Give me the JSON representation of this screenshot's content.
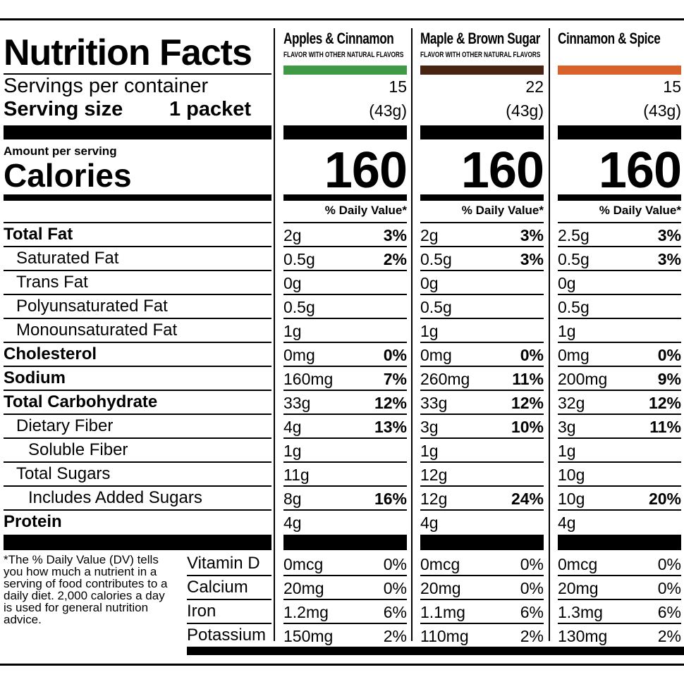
{
  "title": "Nutrition Facts",
  "servings_label": "Servings per container",
  "serving_size_label": "Serving size",
  "serving_size_value": "1 packet",
  "amount_per_serving": "Amount per serving",
  "calories_label": "Calories",
  "dv_header": "% Daily Value*",
  "products": [
    {
      "name": "Apples & Cinnamon",
      "subtitle": "FLAVOR WITH OTHER NATURAL FLAVORS",
      "color": "#3f9a45",
      "servings": "15",
      "weight": "(43g)",
      "calories": "160",
      "nutrients": [
        {
          "amount": "2g",
          "dv": "3%"
        },
        {
          "amount": "0.5g",
          "dv": "2%"
        },
        {
          "amount": "0g",
          "dv": ""
        },
        {
          "amount": "0.5g",
          "dv": ""
        },
        {
          "amount": "1g",
          "dv": ""
        },
        {
          "amount": "0mg",
          "dv": "0%"
        },
        {
          "amount": "160mg",
          "dv": "7%"
        },
        {
          "amount": "33g",
          "dv": "12%"
        },
        {
          "amount": "4g",
          "dv": "13%"
        },
        {
          "amount": "1g",
          "dv": ""
        },
        {
          "amount": "11g",
          "dv": ""
        },
        {
          "amount": "8g",
          "dv": "16%"
        },
        {
          "amount": "4g",
          "dv": ""
        }
      ],
      "minerals": [
        {
          "amount": "0mcg",
          "dv": "0%"
        },
        {
          "amount": "20mg",
          "dv": "0%"
        },
        {
          "amount": "1.2mg",
          "dv": "6%"
        },
        {
          "amount": "150mg",
          "dv": "2%"
        }
      ]
    },
    {
      "name": "Maple & Brown Sugar",
      "subtitle": "FLAVOR WITH OTHER NATURAL FLAVORS",
      "color": "#4a2413",
      "servings": "22",
      "weight": "(43g)",
      "calories": "160",
      "nutrients": [
        {
          "amount": "2g",
          "dv": "3%"
        },
        {
          "amount": "0.5g",
          "dv": "3%"
        },
        {
          "amount": "0g",
          "dv": ""
        },
        {
          "amount": "0.5g",
          "dv": ""
        },
        {
          "amount": "1g",
          "dv": ""
        },
        {
          "amount": "0mg",
          "dv": "0%"
        },
        {
          "amount": "260mg",
          "dv": "11%"
        },
        {
          "amount": "33g",
          "dv": "12%"
        },
        {
          "amount": "3g",
          "dv": "10%"
        },
        {
          "amount": "1g",
          "dv": ""
        },
        {
          "amount": "12g",
          "dv": ""
        },
        {
          "amount": "12g",
          "dv": "24%"
        },
        {
          "amount": "4g",
          "dv": ""
        }
      ],
      "minerals": [
        {
          "amount": "0mcg",
          "dv": "0%"
        },
        {
          "amount": "20mg",
          "dv": "0%"
        },
        {
          "amount": "1.1mg",
          "dv": "6%"
        },
        {
          "amount": "110mg",
          "dv": "2%"
        }
      ]
    },
    {
      "name": "Cinnamon & Spice",
      "subtitle": "",
      "color": "#d9622a",
      "servings": "15",
      "weight": "(43g)",
      "calories": "160",
      "nutrients": [
        {
          "amount": "2.5g",
          "dv": "3%"
        },
        {
          "amount": "0.5g",
          "dv": "3%"
        },
        {
          "amount": "0g",
          "dv": ""
        },
        {
          "amount": "0.5g",
          "dv": ""
        },
        {
          "amount": "1g",
          "dv": ""
        },
        {
          "amount": "0mg",
          "dv": "0%"
        },
        {
          "amount": "200mg",
          "dv": "9%"
        },
        {
          "amount": "32g",
          "dv": "12%"
        },
        {
          "amount": "3g",
          "dv": "11%"
        },
        {
          "amount": "1g",
          "dv": ""
        },
        {
          "amount": "10g",
          "dv": ""
        },
        {
          "amount": "10g",
          "dv": "20%"
        },
        {
          "amount": "4g",
          "dv": ""
        }
      ],
      "minerals": [
        {
          "amount": "0mcg",
          "dv": "0%"
        },
        {
          "amount": "20mg",
          "dv": "0%"
        },
        {
          "amount": "1.3mg",
          "dv": "6%"
        },
        {
          "amount": "130mg",
          "dv": "2%"
        }
      ]
    }
  ],
  "nutrient_labels": [
    {
      "label": "Total Fat",
      "bold": true,
      "indent": 0
    },
    {
      "label": "Saturated Fat",
      "bold": false,
      "indent": 1
    },
    {
      "label": "Trans Fat",
      "bold": false,
      "indent": 1
    },
    {
      "label": "Polyunsaturated Fat",
      "bold": false,
      "indent": 1
    },
    {
      "label": "Monounsaturated Fat",
      "bold": false,
      "indent": 1
    },
    {
      "label": "Cholesterol",
      "bold": true,
      "indent": 0
    },
    {
      "label": "Sodium",
      "bold": true,
      "indent": 0
    },
    {
      "label": "Total Carbohydrate",
      "bold": true,
      "indent": 0
    },
    {
      "label": "Dietary Fiber",
      "bold": false,
      "indent": 1
    },
    {
      "label": "Soluble Fiber",
      "bold": false,
      "indent": 2
    },
    {
      "label": "Total Sugars",
      "bold": false,
      "indent": 1
    },
    {
      "label": "Includes Added Sugars",
      "bold": false,
      "indent": 2
    },
    {
      "label": "Protein",
      "bold": true,
      "indent": 0
    }
  ],
  "mineral_labels": [
    "Vitamin D",
    "Calcium",
    "Iron",
    "Potassium"
  ],
  "footnote": "*The % Daily Value (DV) tells you how much a nutrient in a serving of food contributes to a daily diet. 2,000 calories a day is used for general nutrition advice."
}
